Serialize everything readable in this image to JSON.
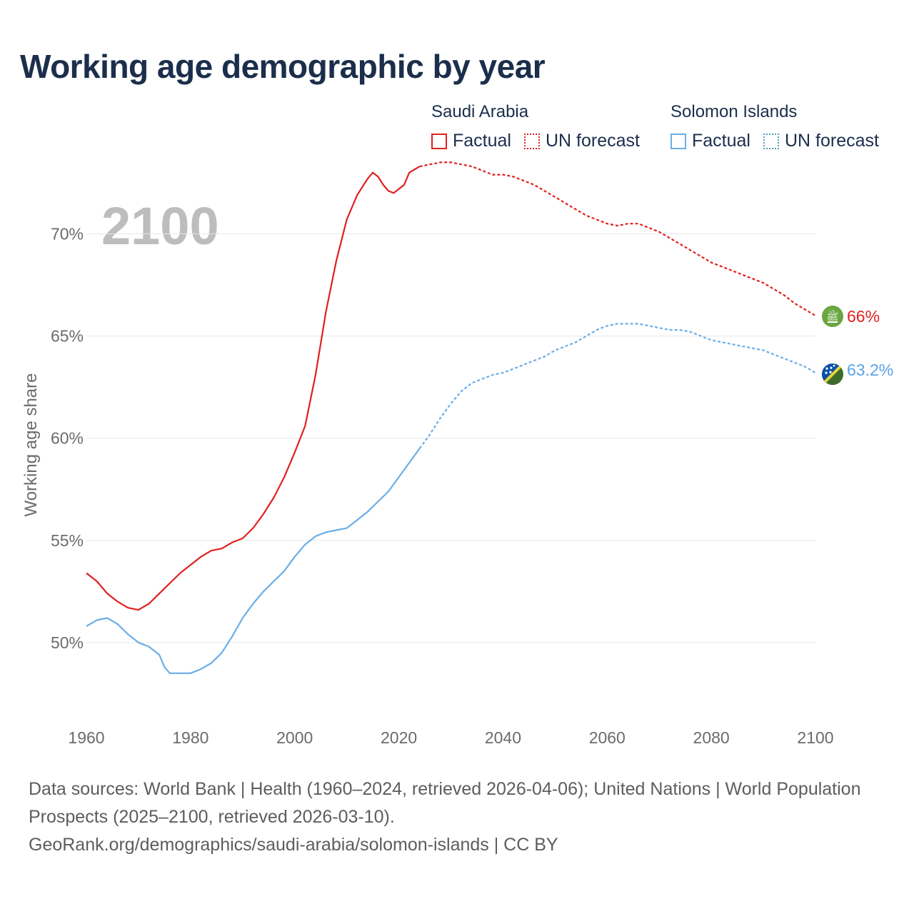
{
  "title": "Working age demographic by year",
  "legend": {
    "saudi_arabia": {
      "name": "Saudi Arabia",
      "factual": "Factual",
      "forecast": "UN forecast",
      "color": "#e0201f"
    },
    "solomon_islands": {
      "name": "Solomon Islands",
      "factual": "Factual",
      "forecast": "UN forecast",
      "color": "#6aaee8"
    }
  },
  "year_watermark": "2100",
  "end_labels": {
    "saudi_arabia": "66%",
    "solomon_islands": "63.2%"
  },
  "footer": {
    "line1": "Data sources: World Bank | Health (1960–2024, retrieved 2026-04-06); United Nations | World Population Prospects (2025–2100, retrieved 2026-03-10).",
    "line2": "GeoRank.org/demographics/saudi-arabia/solomon-islands | CC BY"
  },
  "chart_data": {
    "type": "line",
    "title": "Working age demographic by year",
    "xlabel": "",
    "ylabel": "Working age share",
    "xlim": [
      1960,
      2100
    ],
    "ylim": [
      46.5,
      72.5
    ],
    "x_ticks": [
      1960,
      1980,
      2000,
      2020,
      2040,
      2060,
      2080,
      2100
    ],
    "x_tick_labels": [
      "1960",
      "1980",
      "2000",
      "2020",
      "2040",
      "2060",
      "2080",
      "2100"
    ],
    "y_ticks": [
      50,
      55,
      60,
      65,
      70
    ],
    "y_tick_labels": [
      "50%",
      "55%",
      "60%",
      "65%",
      "70%"
    ],
    "grid": true,
    "forecast_start": 2024,
    "series": [
      {
        "name": "Saudi Arabia",
        "color": "#e0201f",
        "points": [
          [
            1960,
            53.4
          ],
          [
            1962,
            53.0
          ],
          [
            1964,
            52.4
          ],
          [
            1966,
            52.0
          ],
          [
            1968,
            51.7
          ],
          [
            1970,
            51.6
          ],
          [
            1972,
            51.9
          ],
          [
            1974,
            52.4
          ],
          [
            1976,
            52.9
          ],
          [
            1978,
            53.4
          ],
          [
            1980,
            53.8
          ],
          [
            1982,
            54.2
          ],
          [
            1984,
            54.5
          ],
          [
            1986,
            54.6
          ],
          [
            1988,
            54.9
          ],
          [
            1990,
            55.1
          ],
          [
            1992,
            55.6
          ],
          [
            1994,
            56.3
          ],
          [
            1996,
            57.1
          ],
          [
            1998,
            58.1
          ],
          [
            2000,
            59.3
          ],
          [
            2002,
            60.6
          ],
          [
            2004,
            63.1
          ],
          [
            2006,
            66.2
          ],
          [
            2008,
            68.7
          ],
          [
            2010,
            70.7
          ],
          [
            2012,
            71.9
          ],
          [
            2014,
            72.7
          ],
          [
            2015,
            73.0
          ],
          [
            2016,
            72.8
          ],
          [
            2017,
            72.4
          ],
          [
            2018,
            72.1
          ],
          [
            2019,
            72.0
          ],
          [
            2020,
            72.2
          ],
          [
            2021,
            72.4
          ],
          [
            2022,
            73.0
          ],
          [
            2024,
            73.3
          ],
          [
            2026,
            73.4
          ],
          [
            2028,
            73.5
          ],
          [
            2030,
            73.5
          ],
          [
            2032,
            73.4
          ],
          [
            2034,
            73.3
          ],
          [
            2036,
            73.1
          ],
          [
            2038,
            72.9
          ],
          [
            2040,
            72.9
          ],
          [
            2042,
            72.8
          ],
          [
            2044,
            72.6
          ],
          [
            2046,
            72.4
          ],
          [
            2048,
            72.1
          ],
          [
            2050,
            71.8
          ],
          [
            2052,
            71.5
          ],
          [
            2054,
            71.2
          ],
          [
            2056,
            70.9
          ],
          [
            2058,
            70.7
          ],
          [
            2060,
            70.5
          ],
          [
            2062,
            70.4
          ],
          [
            2064,
            70.5
          ],
          [
            2066,
            70.5
          ],
          [
            2068,
            70.3
          ],
          [
            2070,
            70.1
          ],
          [
            2072,
            69.8
          ],
          [
            2074,
            69.5
          ],
          [
            2076,
            69.2
          ],
          [
            2078,
            68.9
          ],
          [
            2080,
            68.6
          ],
          [
            2082,
            68.4
          ],
          [
            2084,
            68.2
          ],
          [
            2086,
            68.0
          ],
          [
            2088,
            67.8
          ],
          [
            2090,
            67.6
          ],
          [
            2092,
            67.3
          ],
          [
            2094,
            67.0
          ],
          [
            2096,
            66.6
          ],
          [
            2098,
            66.3
          ],
          [
            2100,
            66.0
          ]
        ]
      },
      {
        "name": "Solomon Islands",
        "color": "#6aaee8",
        "points": [
          [
            1960,
            50.8
          ],
          [
            1962,
            51.1
          ],
          [
            1964,
            51.2
          ],
          [
            1966,
            50.9
          ],
          [
            1968,
            50.4
          ],
          [
            1970,
            50.0
          ],
          [
            1972,
            49.8
          ],
          [
            1974,
            49.4
          ],
          [
            1975,
            48.8
          ],
          [
            1976,
            48.5
          ],
          [
            1978,
            48.5
          ],
          [
            1980,
            48.5
          ],
          [
            1982,
            48.7
          ],
          [
            1984,
            49.0
          ],
          [
            1986,
            49.5
          ],
          [
            1988,
            50.3
          ],
          [
            1990,
            51.2
          ],
          [
            1992,
            51.9
          ],
          [
            1994,
            52.5
          ],
          [
            1996,
            53.0
          ],
          [
            1998,
            53.5
          ],
          [
            2000,
            54.2
          ],
          [
            2002,
            54.8
          ],
          [
            2004,
            55.2
          ],
          [
            2006,
            55.4
          ],
          [
            2008,
            55.5
          ],
          [
            2010,
            55.6
          ],
          [
            2012,
            56.0
          ],
          [
            2014,
            56.4
          ],
          [
            2016,
            56.9
          ],
          [
            2018,
            57.4
          ],
          [
            2020,
            58.1
          ],
          [
            2022,
            58.8
          ],
          [
            2024,
            59.5
          ],
          [
            2026,
            60.2
          ],
          [
            2028,
            61.0
          ],
          [
            2030,
            61.7
          ],
          [
            2032,
            62.3
          ],
          [
            2034,
            62.7
          ],
          [
            2036,
            62.9
          ],
          [
            2038,
            63.1
          ],
          [
            2040,
            63.2
          ],
          [
            2042,
            63.4
          ],
          [
            2044,
            63.6
          ],
          [
            2046,
            63.8
          ],
          [
            2048,
            64.0
          ],
          [
            2050,
            64.3
          ],
          [
            2052,
            64.5
          ],
          [
            2054,
            64.7
          ],
          [
            2056,
            65.0
          ],
          [
            2058,
            65.3
          ],
          [
            2060,
            65.5
          ],
          [
            2062,
            65.6
          ],
          [
            2064,
            65.6
          ],
          [
            2066,
            65.6
          ],
          [
            2068,
            65.5
          ],
          [
            2070,
            65.4
          ],
          [
            2072,
            65.3
          ],
          [
            2074,
            65.3
          ],
          [
            2076,
            65.2
          ],
          [
            2078,
            65.0
          ],
          [
            2080,
            64.8
          ],
          [
            2082,
            64.7
          ],
          [
            2084,
            64.6
          ],
          [
            2086,
            64.5
          ],
          [
            2088,
            64.4
          ],
          [
            2090,
            64.3
          ],
          [
            2092,
            64.1
          ],
          [
            2094,
            63.9
          ],
          [
            2096,
            63.7
          ],
          [
            2098,
            63.5
          ],
          [
            2100,
            63.2
          ]
        ]
      }
    ]
  }
}
